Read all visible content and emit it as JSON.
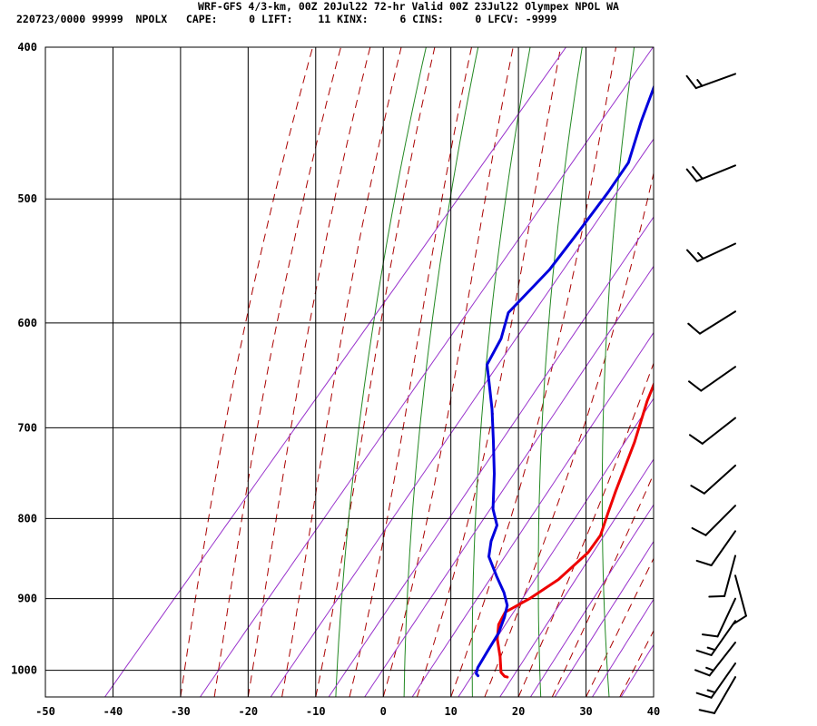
{
  "header": {
    "title": "WRF-GFS 4/3-km, 00Z 20Jul22 72-hr Valid 00Z 23Jul22 Olympex NPOL WA",
    "stats": "220723/0000 99999  NPOLX   CAPE:     0 LIFT:    11 KINX:     6 CINS:     0 LFCV: -9999"
  },
  "chart_data": {
    "type": "skew-t",
    "xlim": [
      -50,
      40
    ],
    "ylim": [
      1040,
      400
    ],
    "x_ticks": [
      "-50",
      "-40",
      "-30",
      "-20",
      "-10",
      "0",
      "10",
      "20",
      "30",
      "40"
    ],
    "y_ticks": [
      "400",
      "500",
      "600",
      "700",
      "800",
      "900",
      "1000"
    ],
    "series": [
      {
        "color": "#ee0000",
        "points": [
          [
            -21.5,
            416
          ],
          [
            -19,
            432
          ],
          [
            -14,
            470
          ],
          [
            -9,
            516
          ],
          [
            -4,
            567
          ],
          [
            -1,
            597
          ],
          [
            0.5,
            618
          ],
          [
            2,
            640
          ],
          [
            4,
            673
          ],
          [
            7,
            715
          ],
          [
            10,
            768
          ],
          [
            11.5,
            794
          ],
          [
            13,
            820
          ],
          [
            13.2,
            841
          ],
          [
            12,
            875
          ],
          [
            10,
            900
          ],
          [
            8,
            918
          ],
          [
            8.5,
            935
          ],
          [
            10,
            955
          ],
          [
            12.5,
            980
          ],
          [
            14.5,
            1003
          ],
          [
            15.5,
            1009
          ],
          [
            16,
            1010
          ]
        ]
      },
      {
        "color": "#0000dd",
        "points": [
          [
            -33,
            416
          ],
          [
            -30,
            446
          ],
          [
            -27,
            474
          ],
          [
            -26.5,
            495
          ],
          [
            -26.2,
            525
          ],
          [
            -26,
            555
          ],
          [
            -27,
            591
          ],
          [
            -25,
            614
          ],
          [
            -24,
            638
          ],
          [
            -22,
            652
          ],
          [
            -18,
            681
          ],
          [
            -14,
            714
          ],
          [
            -10,
            749
          ],
          [
            -6,
            789
          ],
          [
            -3.5,
            808
          ],
          [
            -2.5,
            827
          ],
          [
            -1,
            846
          ],
          [
            2.5,
            871
          ],
          [
            5.5,
            892
          ],
          [
            7.5,
            909
          ],
          [
            8.5,
            925
          ],
          [
            9.5,
            947
          ],
          [
            10,
            972
          ],
          [
            10.5,
            996
          ],
          [
            11,
            1005
          ],
          [
            11.5,
            1008
          ]
        ]
      }
    ],
    "wind_barbs": [
      {
        "p": 416,
        "spd": 15,
        "dir": 250
      },
      {
        "p": 476,
        "spd": 20,
        "dir": 248
      },
      {
        "p": 534,
        "spd": 15,
        "dir": 245
      },
      {
        "p": 590,
        "spd": 10,
        "dir": 238
      },
      {
        "p": 640,
        "spd": 10,
        "dir": 235
      },
      {
        "p": 690,
        "spd": 10,
        "dir": 232
      },
      {
        "p": 740,
        "spd": 10,
        "dir": 228
      },
      {
        "p": 785,
        "spd": 10,
        "dir": 225
      },
      {
        "p": 815,
        "spd": 10,
        "dir": 215
      },
      {
        "p": 845,
        "spd": 10,
        "dir": 195
      },
      {
        "p": 870,
        "spd": 10,
        "dir": 165
      },
      {
        "p": 900,
        "spd": 10,
        "dir": 205
      },
      {
        "p": 930,
        "spd": 15,
        "dir": 215
      },
      {
        "p": 960,
        "spd": 15,
        "dir": 218
      },
      {
        "p": 990,
        "spd": 15,
        "dir": 215
      },
      {
        "p": 1010,
        "spd": 10,
        "dir": 210
      }
    ]
  }
}
